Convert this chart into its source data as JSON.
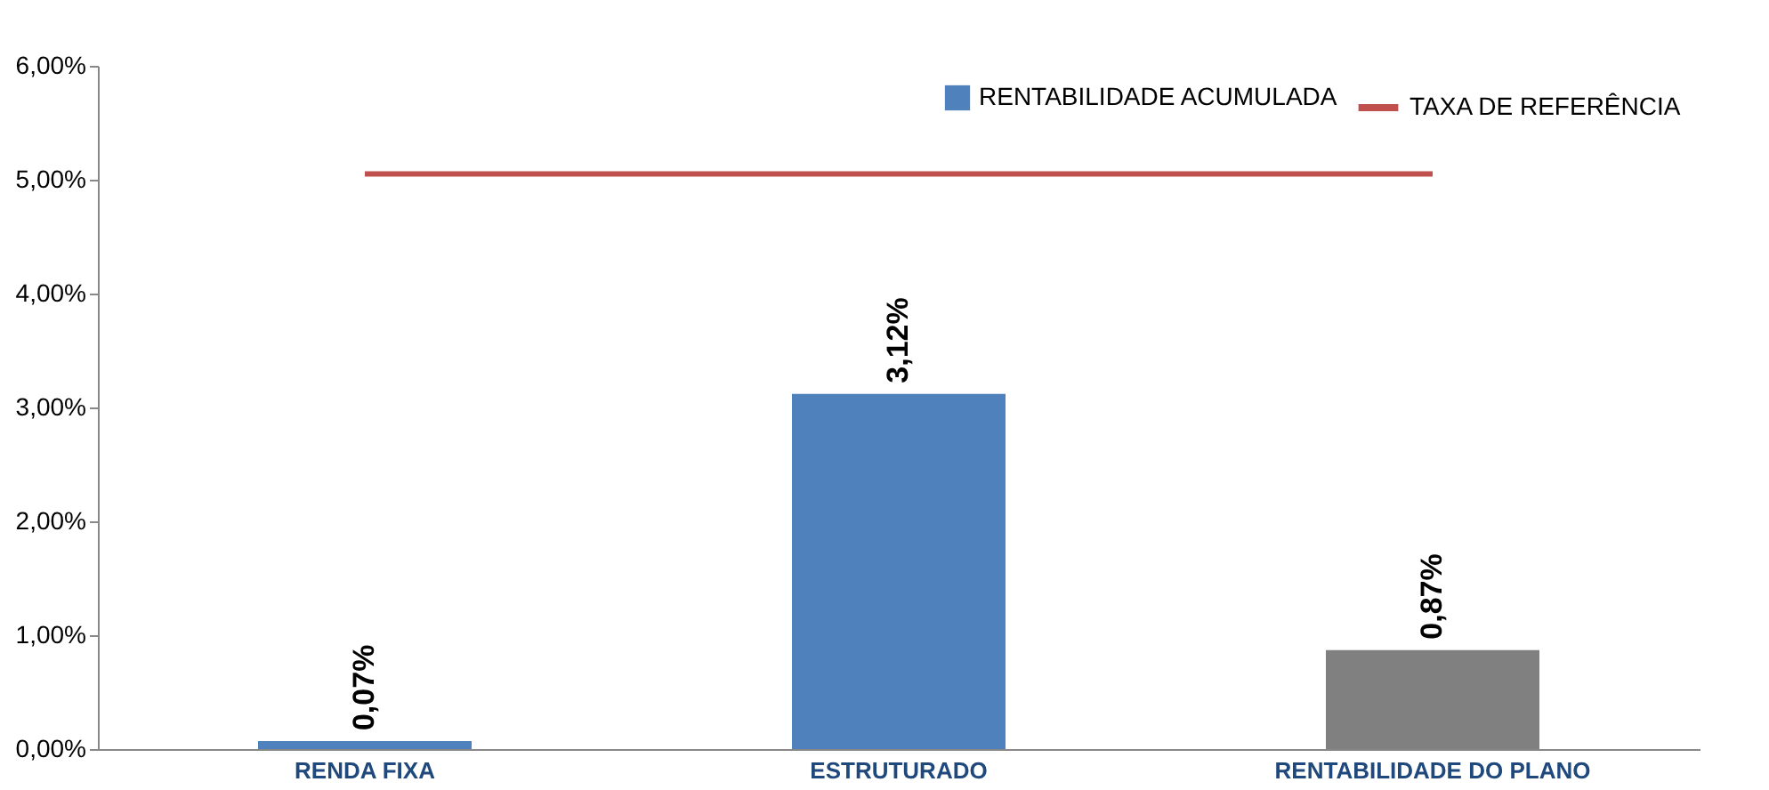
{
  "chart_data": {
    "type": "bar",
    "categories": [
      "RENDA FIXA",
      "ESTRUTURADO",
      "RENTABILIDADE DO PLANO"
    ],
    "series": [
      {
        "name": "RENTABILIDADE ACUMULADA",
        "color": "#4f81bd",
        "colors": [
          "#4f81bd",
          "#4f81bd",
          "#808080"
        ],
        "values": [
          0.07,
          3.12,
          0.87
        ],
        "value_labels": [
          "0,07%",
          "3,12%",
          "0,87%"
        ]
      },
      {
        "name": "TAXA DE REFERÊNCIA",
        "type": "line",
        "color": "#c0504d",
        "values": [
          5.05,
          5.05,
          5.05
        ]
      }
    ],
    "ylim": [
      0,
      6
    ],
    "yticks": [
      {
        "value": 0,
        "label": "0,00%"
      },
      {
        "value": 1,
        "label": "1,00%"
      },
      {
        "value": 2,
        "label": "2,00%"
      },
      {
        "value": 3,
        "label": "3,00%"
      },
      {
        "value": 4,
        "label": "4,00%"
      },
      {
        "value": 5,
        "label": "5,00%"
      },
      {
        "value": 6,
        "label": "6,00%"
      }
    ],
    "grid": false,
    "legend": "top right"
  }
}
